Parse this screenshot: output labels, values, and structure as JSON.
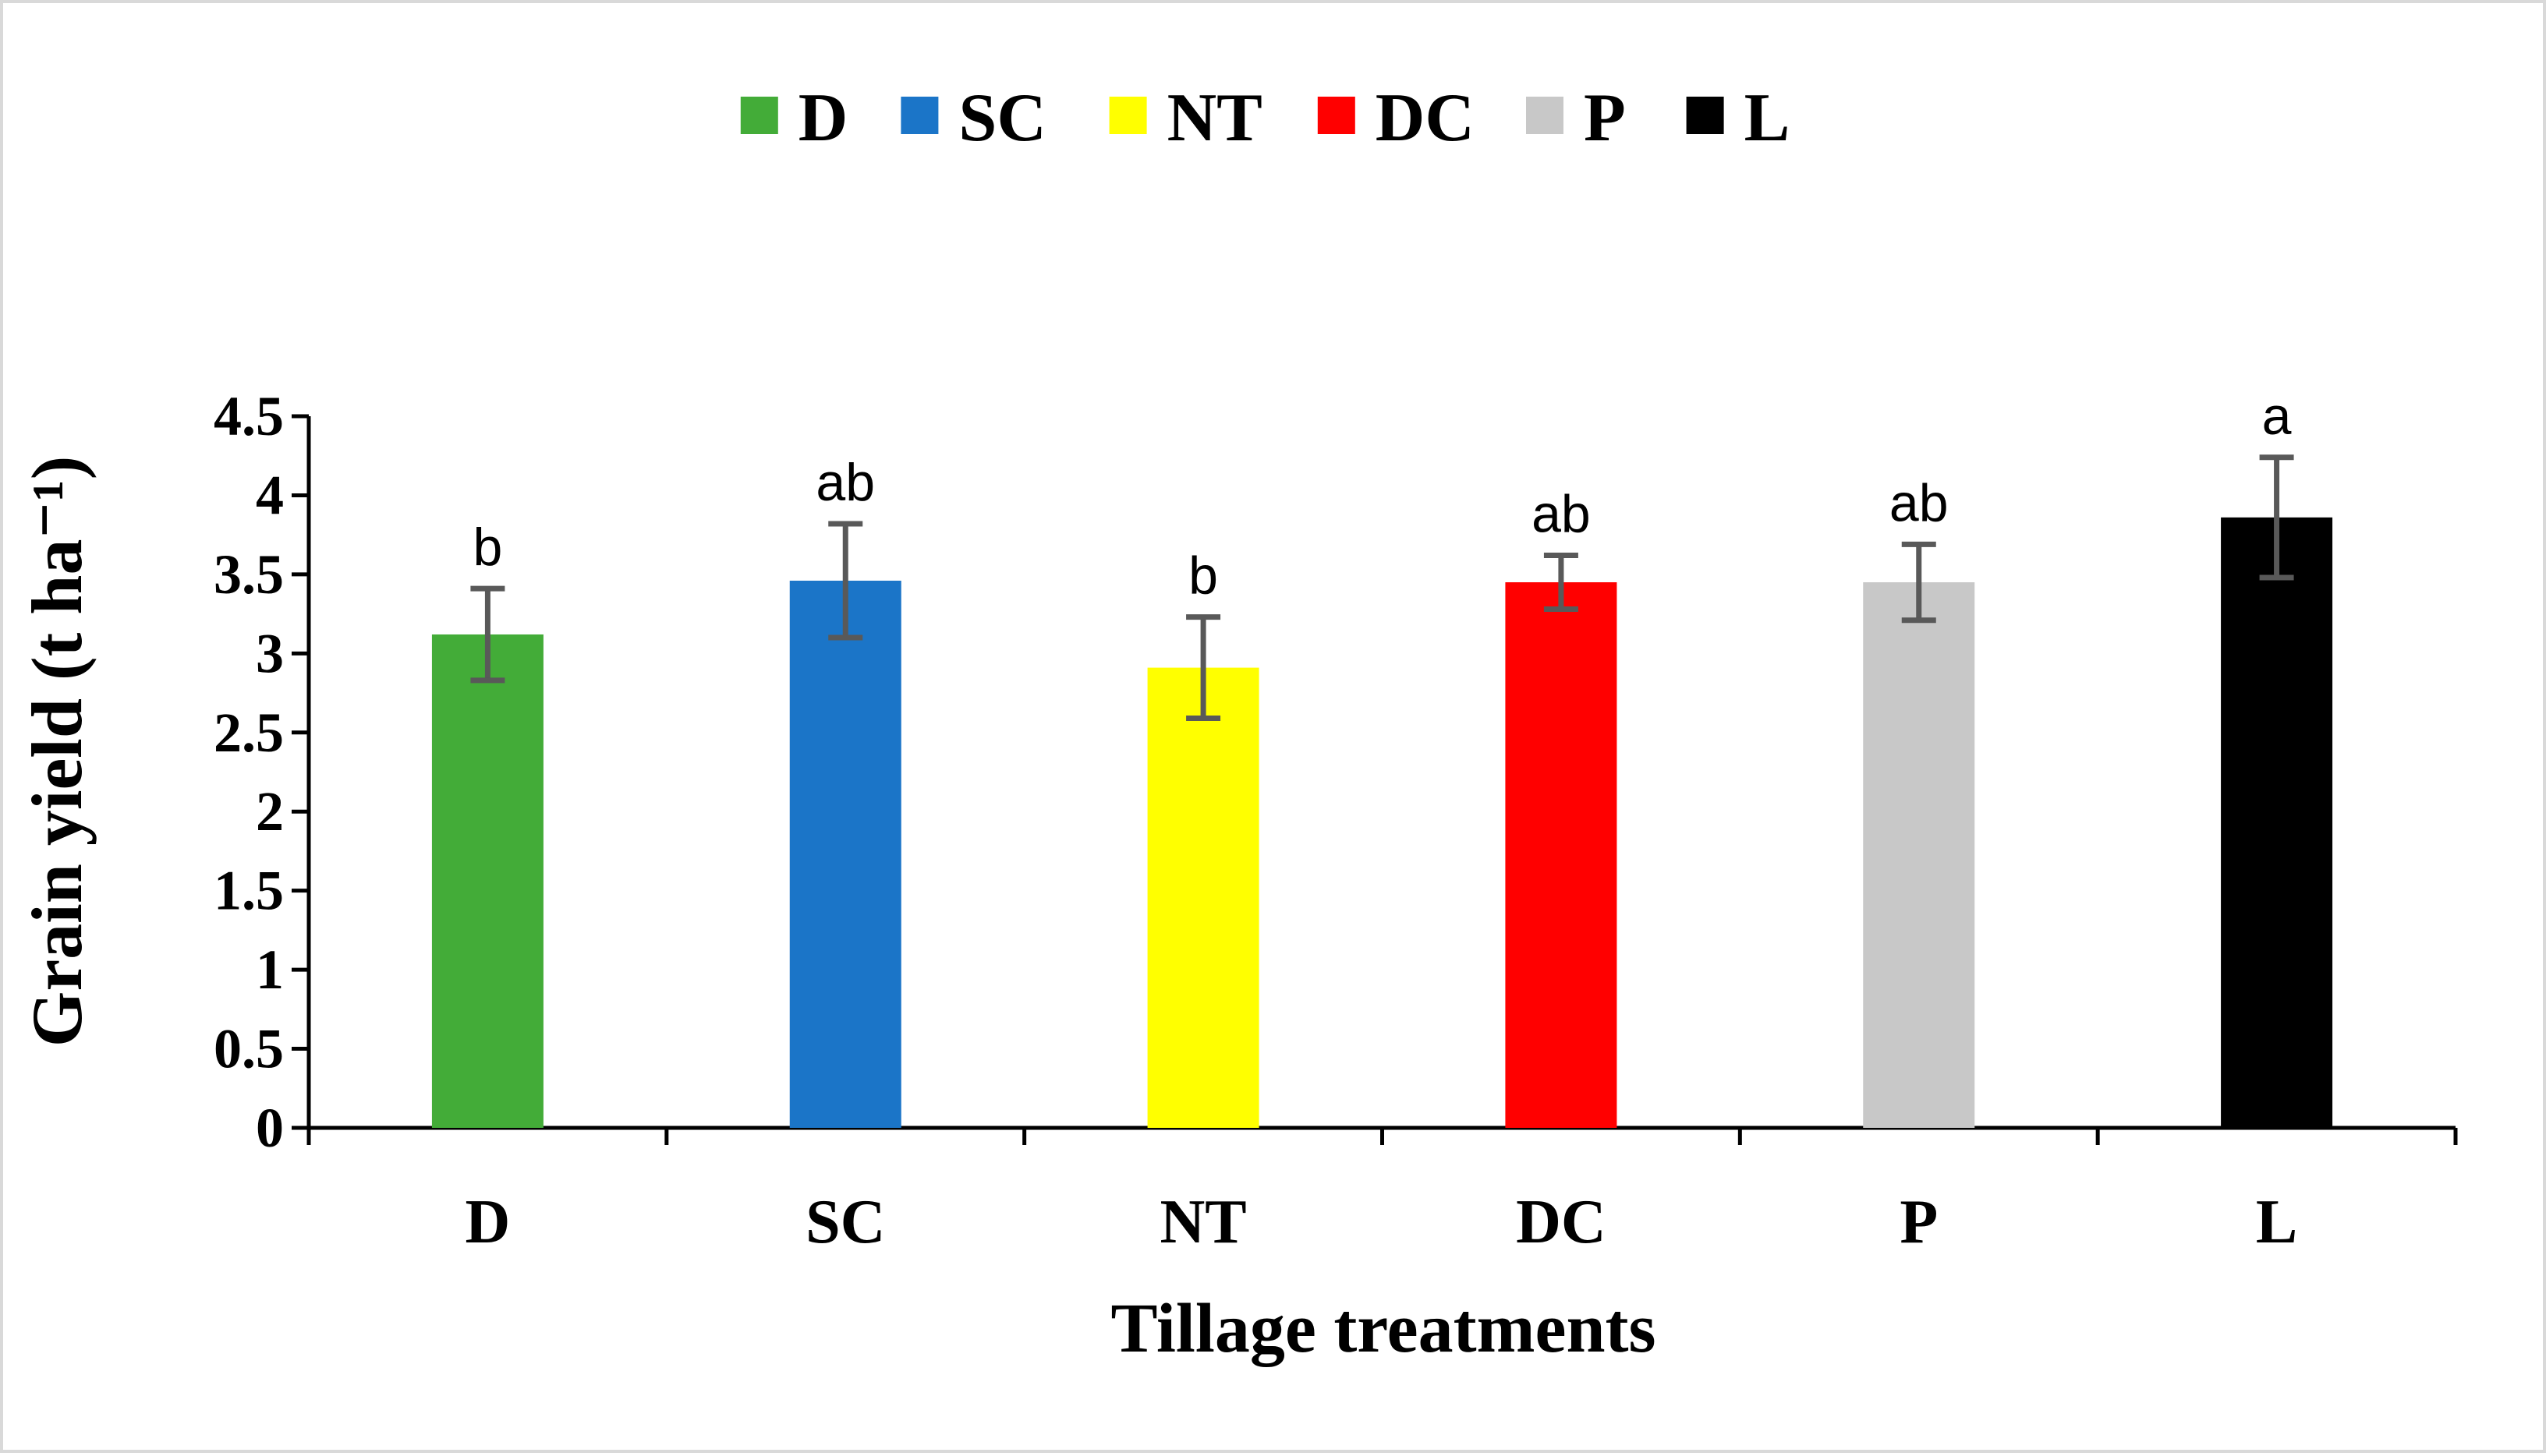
{
  "chart_data": {
    "type": "bar",
    "title": "",
    "xlabel": "Tillage treatments",
    "ylabel": "Grain yield (t ha⁻¹)",
    "categories": [
      "D",
      "SC",
      "NT",
      "DC",
      "P",
      "L"
    ],
    "values": [
      3.12,
      3.46,
      2.91,
      3.45,
      3.45,
      3.86
    ],
    "errors": [
      0.29,
      0.36,
      0.32,
      0.17,
      0.24,
      0.38
    ],
    "significance_letters": [
      "b",
      "ab",
      "b",
      "ab",
      "ab",
      "a"
    ],
    "colors": [
      "#43AC38",
      "#1B75C8",
      "#FFFF00",
      "#FF0000",
      "#C8C8C8",
      "#000000"
    ],
    "error_bar_color": "#595959",
    "ylim": [
      0,
      4.5
    ],
    "yticks": [
      0,
      0.5,
      1,
      1.5,
      2,
      2.5,
      3,
      3.5,
      4,
      4.5
    ],
    "ytick_labels": [
      "0",
      "0.5",
      "1",
      "1.5",
      "2",
      "2.5",
      "3",
      "3.5",
      "4",
      "4.5"
    ],
    "grid": false,
    "legend": {
      "position": "top",
      "entries": [
        "D",
        "SC",
        "NT",
        "DC",
        "P",
        "L"
      ]
    }
  }
}
